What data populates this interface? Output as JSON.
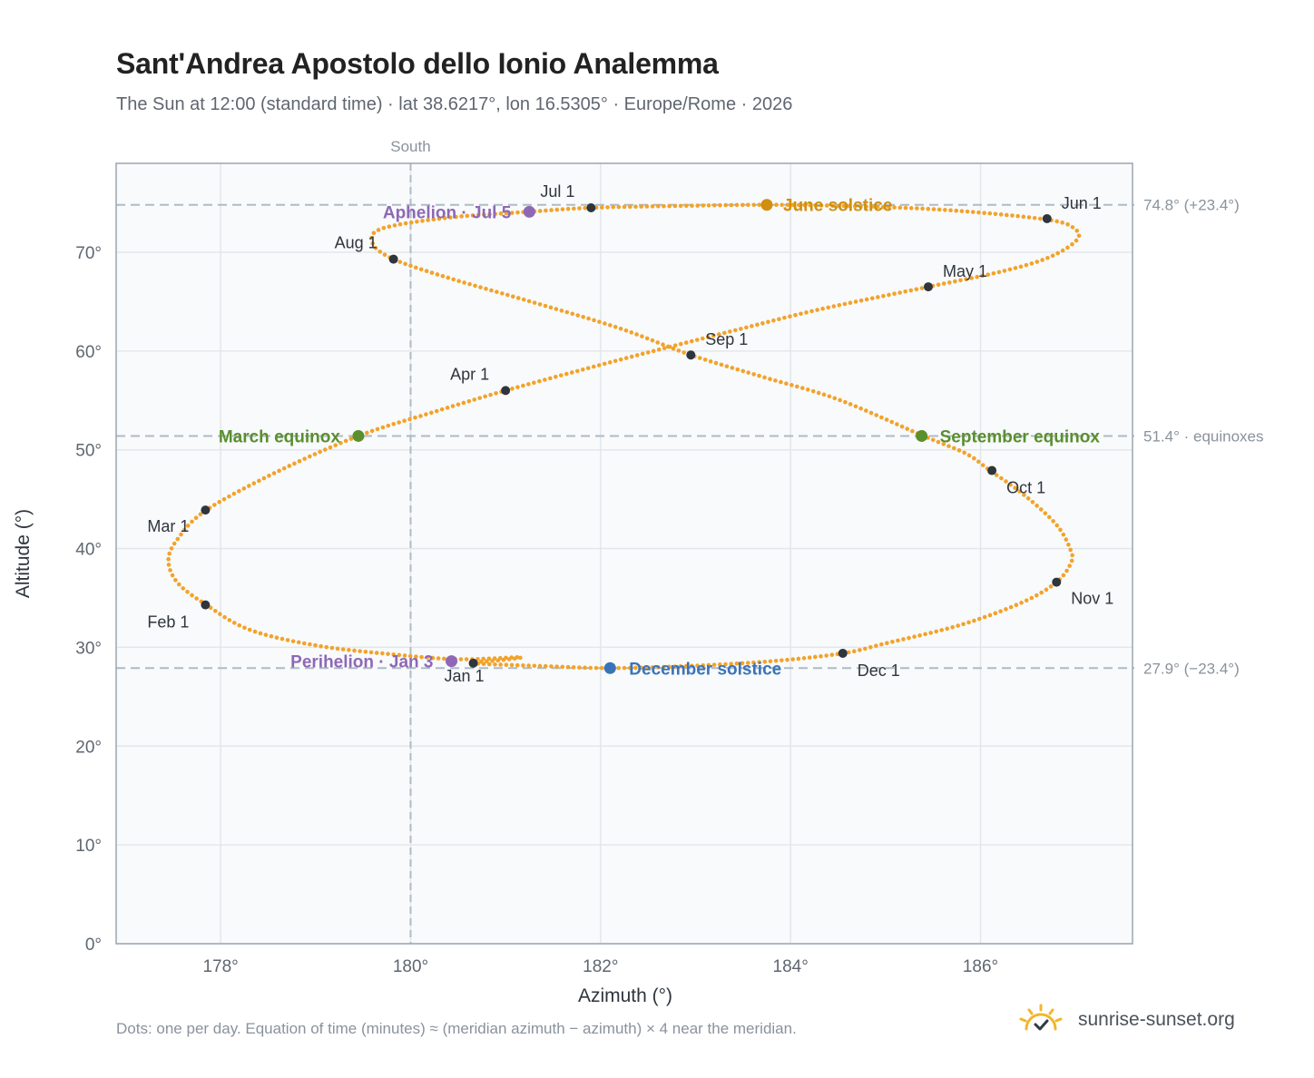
{
  "title": "Sant'Andrea Apostolo dello Ionio Analemma",
  "subtitle": "The Sun at 12:00 (standard time) · lat 38.6217°, lon 16.5305° · Europe/Rome · 2026",
  "footnote": "Dots: one per day. Equation of time (minutes) ≈ (meridian azimuth − azimuth) × 4 near the meridian.",
  "brand": "sunrise-sunset.org",
  "brand_icon": "sun-logo-icon",
  "colors": {
    "path": "#f2a32a",
    "month_marker": "#2f353d",
    "equinox": "#5a8f2e",
    "june_solstice": "#d08f0e",
    "december_solstice": "#3a74b8",
    "apsis": "#8e68b5",
    "grid": "#e3e7ec",
    "reference_line": "#aebbc6",
    "plot_background": "#f8fafc",
    "frame": "#9aa6b2"
  },
  "chart_data": {
    "type": "scatter",
    "title": "Sant'Andrea Apostolo dello Ionio Analemma",
    "subtitle": "The Sun at 12:00 (standard time) · lat 38.6217°, lon 16.5305° · Europe/Rome · 2026",
    "xlabel": "Azimuth (°)",
    "ylabel": "Altitude (°)",
    "xlim": [
      176.9,
      187.6
    ],
    "ylim": [
      0,
      79
    ],
    "grid": true,
    "x_ticks": [
      178,
      180,
      182,
      184,
      186
    ],
    "x_tick_labels": [
      "178°",
      "180°",
      "182°",
      "184°",
      "186°"
    ],
    "y_ticks": [
      0,
      10,
      20,
      30,
      40,
      50,
      60,
      70
    ],
    "y_tick_labels": [
      "0°",
      "10°",
      "20°",
      "30°",
      "40°",
      "50°",
      "60°",
      "70°"
    ],
    "meridian": {
      "azimuth": 180,
      "label": "South"
    },
    "reference_lines": [
      {
        "altitude": 74.8,
        "label": "74.8° (+23.4°)"
      },
      {
        "altitude": 51.4,
        "label": "51.4° · equinoxes"
      },
      {
        "altitude": 27.9,
        "label": "27.9° (−23.4°)"
      }
    ],
    "path_points": [
      [
        180.65,
        28.4
      ],
      [
        180.95,
        28.7
      ],
      [
        181.15,
        29.0
      ],
      [
        180.5,
        28.8
      ],
      [
        179.8,
        29.3
      ],
      [
        179.0,
        30.2
      ],
      [
        178.3,
        31.8
      ],
      [
        177.85,
        34.3
      ],
      [
        177.55,
        36.5
      ],
      [
        177.45,
        38.8
      ],
      [
        177.55,
        41.0
      ],
      [
        177.85,
        43.9
      ],
      [
        178.6,
        47.8
      ],
      [
        179.45,
        51.4
      ],
      [
        180.2,
        53.7
      ],
      [
        181.0,
        56.0
      ],
      [
        182.0,
        58.6
      ],
      [
        182.8,
        60.6
      ],
      [
        183.5,
        62.3
      ],
      [
        184.3,
        64.2
      ],
      [
        185.45,
        66.5
      ],
      [
        186.2,
        68.0
      ],
      [
        186.7,
        69.4
      ],
      [
        187.0,
        71.1
      ],
      [
        187.0,
        72.3
      ],
      [
        186.7,
        73.3
      ],
      [
        185.6,
        74.3
      ],
      [
        184.5,
        74.7
      ],
      [
        183.75,
        74.8
      ],
      [
        182.9,
        74.7
      ],
      [
        181.9,
        74.5
      ],
      [
        181.25,
        74.1
      ],
      [
        180.4,
        73.5
      ],
      [
        179.7,
        72.4
      ],
      [
        179.6,
        70.9
      ],
      [
        179.82,
        69.3
      ],
      [
        180.4,
        67.4
      ],
      [
        181.3,
        64.9
      ],
      [
        182.2,
        62.3
      ],
      [
        182.95,
        59.6
      ],
      [
        183.7,
        57.4
      ],
      [
        184.5,
        55.1
      ],
      [
        185.4,
        51.4
      ],
      [
        185.85,
        49.6
      ],
      [
        186.1,
        47.9
      ],
      [
        186.45,
        45.5
      ],
      [
        186.8,
        42.4
      ],
      [
        186.95,
        39.8
      ],
      [
        186.95,
        38.5
      ],
      [
        186.8,
        36.6
      ],
      [
        186.45,
        34.6
      ],
      [
        185.8,
        32.3
      ],
      [
        185.0,
        30.4
      ],
      [
        184.55,
        29.4
      ],
      [
        183.8,
        28.6
      ],
      [
        182.9,
        28.1
      ],
      [
        182.1,
        27.9
      ],
      [
        181.4,
        28.1
      ],
      [
        180.65,
        28.4
      ]
    ],
    "month_markers": [
      {
        "label": "Jan 1",
        "azimuth": 180.66,
        "altitude": 28.4
      },
      {
        "label": "Feb 1",
        "azimuth": 177.84,
        "altitude": 34.3
      },
      {
        "label": "Mar 1",
        "azimuth": 177.84,
        "altitude": 43.9
      },
      {
        "label": "Apr 1",
        "azimuth": 181.0,
        "altitude": 56.0
      },
      {
        "label": "May 1",
        "azimuth": 185.45,
        "altitude": 66.5
      },
      {
        "label": "Jun 1",
        "azimuth": 186.7,
        "altitude": 73.4
      },
      {
        "label": "Jul 1",
        "azimuth": 181.9,
        "altitude": 74.5
      },
      {
        "label": "Aug 1",
        "azimuth": 179.82,
        "altitude": 69.3
      },
      {
        "label": "Sep 1",
        "azimuth": 182.95,
        "altitude": 59.6
      },
      {
        "label": "Oct 1",
        "azimuth": 186.12,
        "altitude": 47.9
      },
      {
        "label": "Nov 1",
        "azimuth": 186.8,
        "altitude": 36.6
      },
      {
        "label": "Dec 1",
        "azimuth": 184.55,
        "altitude": 29.4
      }
    ],
    "key_events": [
      {
        "label": "March equinox",
        "azimuth": 179.45,
        "altitude": 51.4,
        "kind": "equinox"
      },
      {
        "label": "September equinox",
        "azimuth": 185.38,
        "altitude": 51.4,
        "kind": "equinox"
      },
      {
        "label": "June solstice",
        "azimuth": 183.75,
        "altitude": 74.8,
        "kind": "june_solstice"
      },
      {
        "label": "December solstice",
        "azimuth": 182.1,
        "altitude": 27.9,
        "kind": "december_solstice"
      },
      {
        "label": "Aphelion · Jul 5",
        "azimuth": 181.25,
        "altitude": 74.1,
        "kind": "apsis"
      },
      {
        "label": "Perihelion · Jan 3",
        "azimuth": 180.43,
        "altitude": 28.6,
        "kind": "apsis"
      }
    ]
  }
}
